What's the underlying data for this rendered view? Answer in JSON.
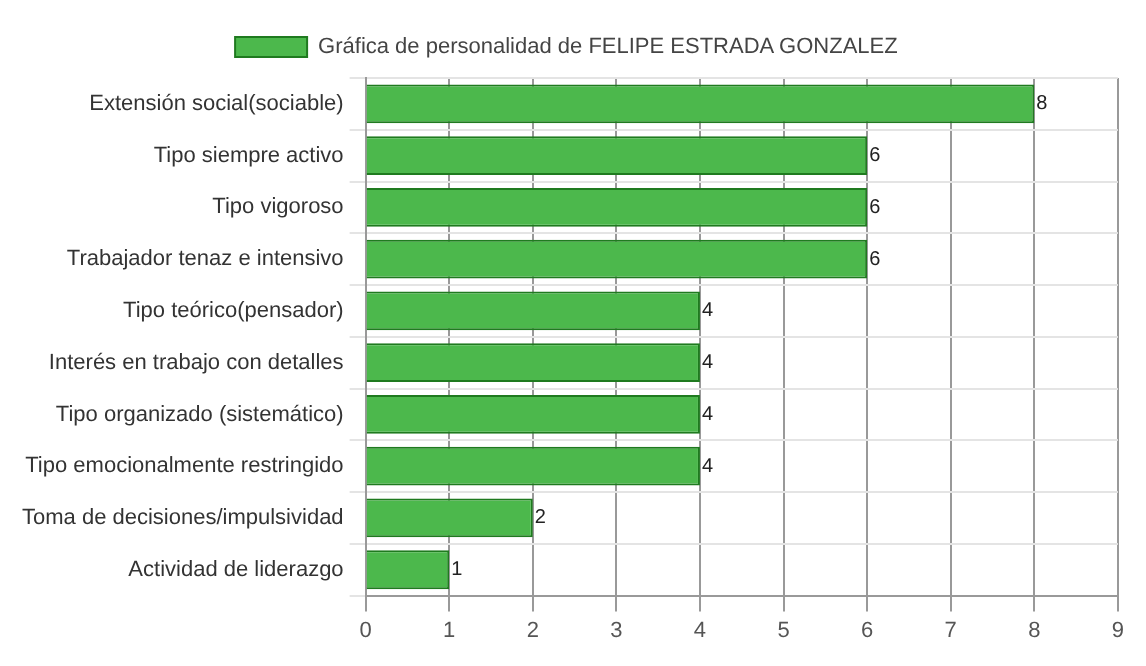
{
  "chart_data": {
    "type": "bar",
    "orientation": "horizontal",
    "categories": [
      "Extensión social(sociable)",
      "Tipo siempre activo",
      "Tipo vigoroso",
      "Trabajador tenaz e intensivo",
      "Tipo teórico(pensador)",
      "Interés en trabajo con detalles",
      "Tipo organizado (sistemático)",
      "Tipo emocionalmente restringido",
      "Toma de decisiones/impulsividad",
      "Actividad de liderazgo"
    ],
    "series": [
      {
        "name": "Gráfica de personalidad de FELIPE ESTRADA GONZALEZ",
        "color": "#4cb84c",
        "values": [
          8,
          6,
          6,
          6,
          4,
          4,
          4,
          4,
          2,
          1
        ]
      }
    ],
    "xlim": [
      0,
      9
    ],
    "xticks": [
      0,
      1,
      2,
      3,
      4,
      5,
      6,
      7,
      8,
      9
    ],
    "grid": true,
    "legend": "top",
    "data_labels": true
  }
}
